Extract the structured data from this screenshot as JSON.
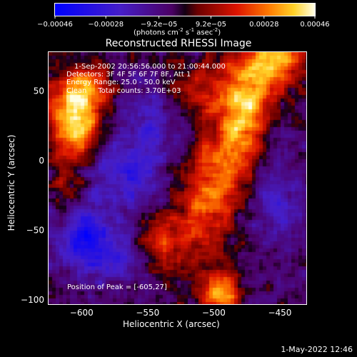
{
  "chart_data": {
    "type": "heatmap",
    "title": "Reconstructed RHESSI Image",
    "xlabel": "Heliocentric X (arcsec)",
    "ylabel": "Heliocentric Y (arcsec)",
    "xlim": [
      -625,
      -430
    ],
    "ylim": [
      -103,
      78
    ],
    "x_ticks": [
      -600,
      -550,
      -500,
      -450
    ],
    "y_ticks": [
      -100,
      -50,
      0,
      50
    ],
    "colorbar": {
      "range": [
        -0.00046,
        0.00046
      ],
      "tick_values": [
        -0.00046,
        -0.00028,
        -9.2e-05,
        9.2e-05,
        0.00028,
        0.00046
      ],
      "tick_labels": [
        "-0.00046",
        "-0.00028",
        "-9.2e-05",
        "9.2e-05",
        "0.00028",
        "0.00046"
      ],
      "unit_label": {
        "pre": "(photons cm",
        "e1": "-2",
        "mid1": " s",
        "e2": "-1",
        "mid2": " asec",
        "e3": "-2",
        "post": ")"
      }
    },
    "annotations": {
      "time": "1-Sep-2002 20:56:56.000 to 21:00:44.000",
      "detectors": "Detectors: 3F 4F 5F 6F 7F 8F, Att 1",
      "energy": "Energy Range: 25.0 - 50.0 keV",
      "clean": "Clean     Total counts: 3.70E+03",
      "peak": "Position of Peak = [-605,27]"
    },
    "peak_position": [
      -605,
      27
    ],
    "total_counts": 3700,
    "sources": [
      {
        "x": -605,
        "y": 27,
        "intensity": 0.00046,
        "sx": 14,
        "sy": 18
      },
      {
        "x": -598,
        "y": 53,
        "intensity": 0.0003,
        "sx": 12,
        "sy": 12
      },
      {
        "x": -470,
        "y": 55,
        "intensity": 0.00034,
        "sx": 18,
        "sy": 26
      },
      {
        "x": -480,
        "y": 20,
        "intensity": 0.00028,
        "sx": 14,
        "sy": 20
      },
      {
        "x": -500,
        "y": -10,
        "intensity": 0.00024,
        "sx": 14,
        "sy": 18
      },
      {
        "x": -520,
        "y": 50,
        "intensity": 0.0002,
        "sx": 16,
        "sy": 14
      },
      {
        "x": -510,
        "y": -45,
        "intensity": 0.00022,
        "sx": 18,
        "sy": 22
      },
      {
        "x": -540,
        "y": -60,
        "intensity": 0.0002,
        "sx": 12,
        "sy": 12
      },
      {
        "x": -495,
        "y": -95,
        "intensity": 0.00042,
        "sx": 10,
        "sy": 10
      },
      {
        "x": -450,
        "y": 75,
        "intensity": 0.0003,
        "sx": 14,
        "sy": 10
      },
      {
        "x": -610,
        "y": -30,
        "intensity": 0.00016,
        "sx": 10,
        "sy": 20
      },
      {
        "x": -600,
        "y": -50,
        "intensity": -0.00034,
        "sx": 14,
        "sy": 16
      },
      {
        "x": -565,
        "y": -5,
        "intensity": -0.00024,
        "sx": 20,
        "sy": 20
      },
      {
        "x": -580,
        "y": -70,
        "intensity": -0.0002,
        "sx": 18,
        "sy": 14
      },
      {
        "x": -450,
        "y": -30,
        "intensity": -0.00018,
        "sx": 14,
        "sy": 22
      },
      {
        "x": -545,
        "y": 35,
        "intensity": -0.00016,
        "sx": 16,
        "sy": 16
      },
      {
        "x": -455,
        "y": 20,
        "intensity": -0.00014,
        "sx": 10,
        "sy": 16
      }
    ]
  },
  "footer": {
    "timestamp": "1-May-2022 12:46"
  }
}
